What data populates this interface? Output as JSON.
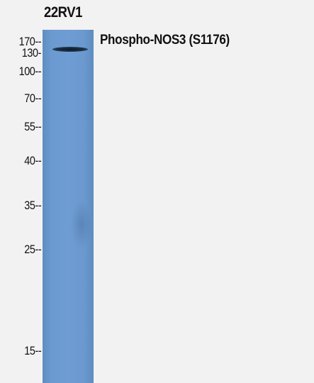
{
  "sample": {
    "label": "22RV1"
  },
  "target": {
    "label": "Phospho-NOS3 (S1176)"
  },
  "markers": [
    {
      "label": "170--"
    },
    {
      "label": "130-"
    },
    {
      "label": "100--"
    },
    {
      "label": "70--"
    },
    {
      "label": "55--"
    },
    {
      "label": "40--"
    },
    {
      "label": "35--"
    },
    {
      "label": "25--"
    },
    {
      "label": "15--"
    }
  ],
  "colors": {
    "background": "#f2f2f2",
    "membrane": "#6e9dd3",
    "band": "#0e1a2a"
  }
}
